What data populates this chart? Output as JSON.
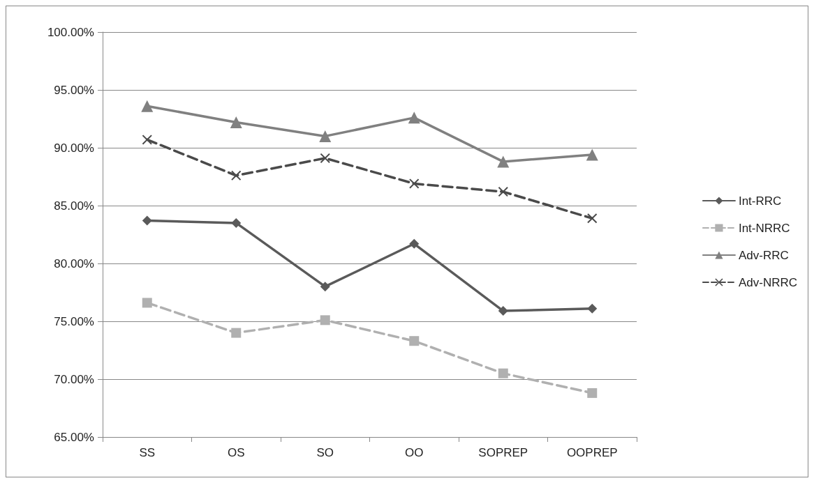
{
  "chart_data": {
    "type": "line",
    "categories": [
      "SS",
      "OS",
      "SO",
      "OO",
      "SOPREP",
      "OOPREP"
    ],
    "series": [
      {
        "name": "Int-RRC",
        "color": "#5a5a5a",
        "marker": "diamond",
        "line_style": "solid",
        "values": [
          83.7,
          83.5,
          78.0,
          81.7,
          75.9,
          76.1
        ]
      },
      {
        "name": "Int-NRRC",
        "color": "#b0b0b0",
        "marker": "square",
        "line_style": "dashed",
        "values": [
          76.6,
          74.0,
          75.1,
          73.3,
          70.5,
          68.8
        ]
      },
      {
        "name": "Adv-RRC",
        "color": "#808080",
        "marker": "triangle",
        "line_style": "solid",
        "values": [
          93.6,
          92.2,
          91.0,
          92.6,
          88.8,
          89.4
        ]
      },
      {
        "name": "Adv-NRRC",
        "color": "#4a4a4a",
        "marker": "cross",
        "line_style": "dashed",
        "values": [
          90.7,
          87.6,
          89.1,
          86.9,
          86.2,
          83.9
        ]
      }
    ],
    "ylim": [
      65,
      100
    ],
    "yticks": [
      {
        "value": 65,
        "label": "65.00%"
      },
      {
        "value": 70,
        "label": "70.00%"
      },
      {
        "value": 75,
        "label": "75.00%"
      },
      {
        "value": 80,
        "label": "80.00%"
      },
      {
        "value": 85,
        "label": "85.00%"
      },
      {
        "value": 90,
        "label": "90.00%"
      },
      {
        "value": 95,
        "label": "95.00%"
      },
      {
        "value": 100,
        "label": "100.00%"
      }
    ],
    "grid": "y",
    "legend": "right"
  }
}
